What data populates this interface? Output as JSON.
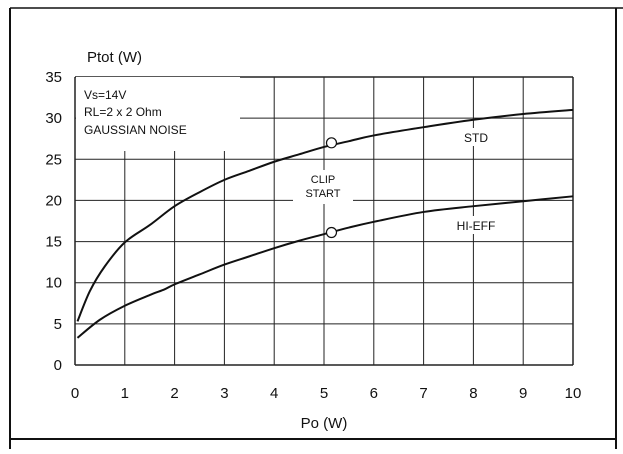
{
  "chart_data": {
    "type": "line",
    "xlabel": "Po (W)",
    "ylabel": "Ptot (W)",
    "xlim": [
      0,
      10
    ],
    "ylim": [
      0,
      35
    ],
    "x_ticks": [
      "0",
      "1",
      "2",
      "3",
      "4",
      "5",
      "6",
      "7",
      "8",
      "9",
      "10"
    ],
    "y_ticks": [
      "0",
      "5",
      "10",
      "15",
      "20",
      "25",
      "30",
      "35"
    ],
    "grid": true,
    "conditions": [
      "Vs=14V",
      "RL=2 x 2 Ohm",
      "GAUSSIAN NOISE"
    ],
    "series": [
      {
        "name": "STD",
        "x": [
          0.05,
          0.3,
          0.6,
          1,
          1.5,
          2,
          2.5,
          3,
          3.5,
          4,
          4.5,
          5,
          5.5,
          6,
          7,
          8,
          9,
          10
        ],
        "y": [
          5.3,
          9,
          12,
          14.9,
          17,
          19.3,
          21,
          22.5,
          23.6,
          24.7,
          25.6,
          26.5,
          27.2,
          27.9,
          28.9,
          29.8,
          30.5,
          31.0
        ]
      },
      {
        "name": "HI-EFF",
        "x": [
          0.05,
          0.5,
          1,
          1.5,
          1.8,
          2,
          2.5,
          3,
          3.5,
          4,
          4.5,
          5,
          5.5,
          6,
          7,
          8,
          9,
          10
        ],
        "y": [
          3.3,
          5.5,
          7.2,
          8.5,
          9.2,
          9.8,
          11,
          12.2,
          13.2,
          14.2,
          15.1,
          15.9,
          16.7,
          17.4,
          18.6,
          19.3,
          19.9,
          20.5
        ]
      }
    ],
    "annotations": {
      "clip_start": [
        "CLIP",
        "START"
      ],
      "clip_markers": [
        {
          "series": "STD",
          "x": 5.15,
          "y": 27
        },
        {
          "series": "HI-EFF",
          "x": 5.15,
          "y": 16.1
        }
      ]
    }
  }
}
